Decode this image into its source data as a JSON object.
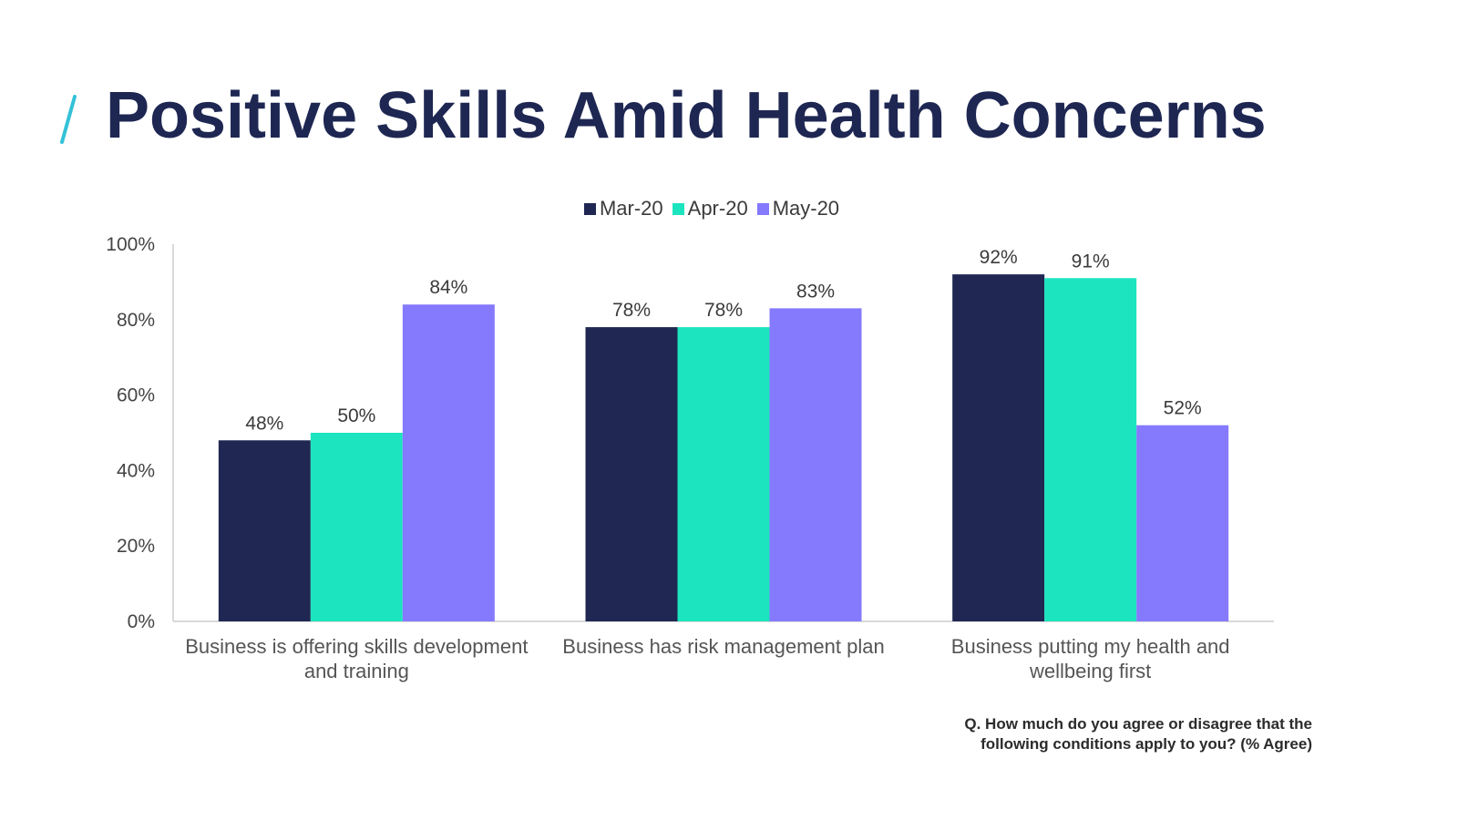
{
  "title": "Positive Skills Amid Health Concerns",
  "colors": {
    "title": "#1e2752",
    "accent_slash": "#33c1d8",
    "axis_text": "#444444",
    "axis_line": "#d9d9d9"
  },
  "chart_data": {
    "type": "bar",
    "title": "",
    "xlabel": "",
    "ylabel": "",
    "ylim": [
      0,
      100
    ],
    "yticks": [
      0,
      20,
      40,
      60,
      80,
      100
    ],
    "ytick_labels": [
      "0%",
      "20%",
      "40%",
      "60%",
      "80%",
      "100%"
    ],
    "legend_position": "top-center",
    "categories": [
      [
        "Business is offering skills development",
        "and training"
      ],
      [
        "Business has risk management plan"
      ],
      [
        "Business putting my health and",
        "wellbeing first"
      ]
    ],
    "series": [
      {
        "name": "Mar-20",
        "color": "#1f2752",
        "values": [
          48,
          78,
          92
        ],
        "labels": [
          "48%",
          "78%",
          "92%"
        ]
      },
      {
        "name": "Apr-20",
        "color": "#1ce4bf",
        "values": [
          50,
          78,
          91
        ],
        "labels": [
          "50%",
          "78%",
          "91%"
        ]
      },
      {
        "name": "May-20",
        "color": "#8579fd",
        "values": [
          84,
          83,
          52
        ],
        "labels": [
          "84%",
          "83%",
          "52%"
        ]
      }
    ]
  },
  "footnote": {
    "line1": "Q. How much do you agree or disagree that the",
    "line2": "following conditions apply to you? (% Agree)"
  }
}
